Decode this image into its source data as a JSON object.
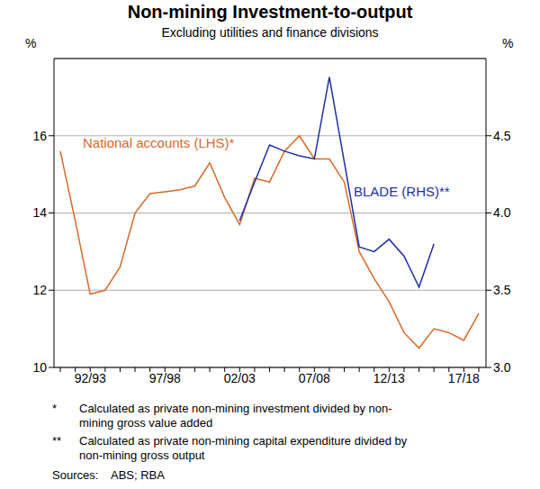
{
  "chart_data": {
    "type": "line",
    "title": "Non-mining Investment-to-output",
    "subtitle": "Excluding utilities and finance divisions",
    "categories": [
      null,
      null,
      "92/93",
      null,
      null,
      null,
      null,
      "97/98",
      null,
      null,
      null,
      null,
      "02/03",
      null,
      null,
      null,
      null,
      "07/08",
      null,
      null,
      null,
      null,
      "12/13",
      null,
      null,
      null,
      null,
      "17/18",
      null
    ],
    "series": [
      {
        "name": "National accounts (LHS)*",
        "color": "#d8692a",
        "values": [
          15.6,
          13.8,
          11.9,
          12.0,
          12.6,
          14.0,
          14.5,
          14.55,
          14.6,
          14.7,
          15.3,
          14.4,
          13.7,
          14.9,
          14.8,
          15.6,
          16.0,
          15.4,
          15.4,
          14.8,
          13.0,
          12.3,
          11.7,
          10.9,
          10.5,
          11.0,
          10.9,
          10.7,
          11.4
        ]
      },
      {
        "name": "BLADE (RHS)**",
        "color": "#1f2fa5",
        "axis": "y2",
        "values": [
          null,
          null,
          null,
          null,
          null,
          null,
          null,
          null,
          null,
          null,
          null,
          null,
          3.95,
          4.2,
          4.44,
          4.4,
          4.37,
          4.35,
          4.88,
          4.33,
          3.78,
          3.75,
          3.83,
          3.72,
          3.52,
          3.8,
          null,
          null,
          null
        ]
      }
    ],
    "y_label": "%",
    "y2_label": "%",
    "ylim": [
      10,
      18
    ],
    "yticks": [
      10,
      12,
      14,
      16
    ],
    "y2lim": [
      3,
      5
    ],
    "y2ticks": [
      {
        "value": 3,
        "label": "3.0"
      },
      3.5,
      {
        "value": 4,
        "label": "4.0"
      },
      4.5
    ],
    "grid": true,
    "notes": [
      {
        "mark": "*",
        "text": "Calculated as private non-mining investment divided by non-mining gross value added"
      },
      {
        "mark": "**",
        "text": "Calculated as private non-mining capital expenditure divided by non-mining gross output"
      }
    ],
    "sources_label": "Sources:",
    "sources": "ABS; RBA"
  }
}
